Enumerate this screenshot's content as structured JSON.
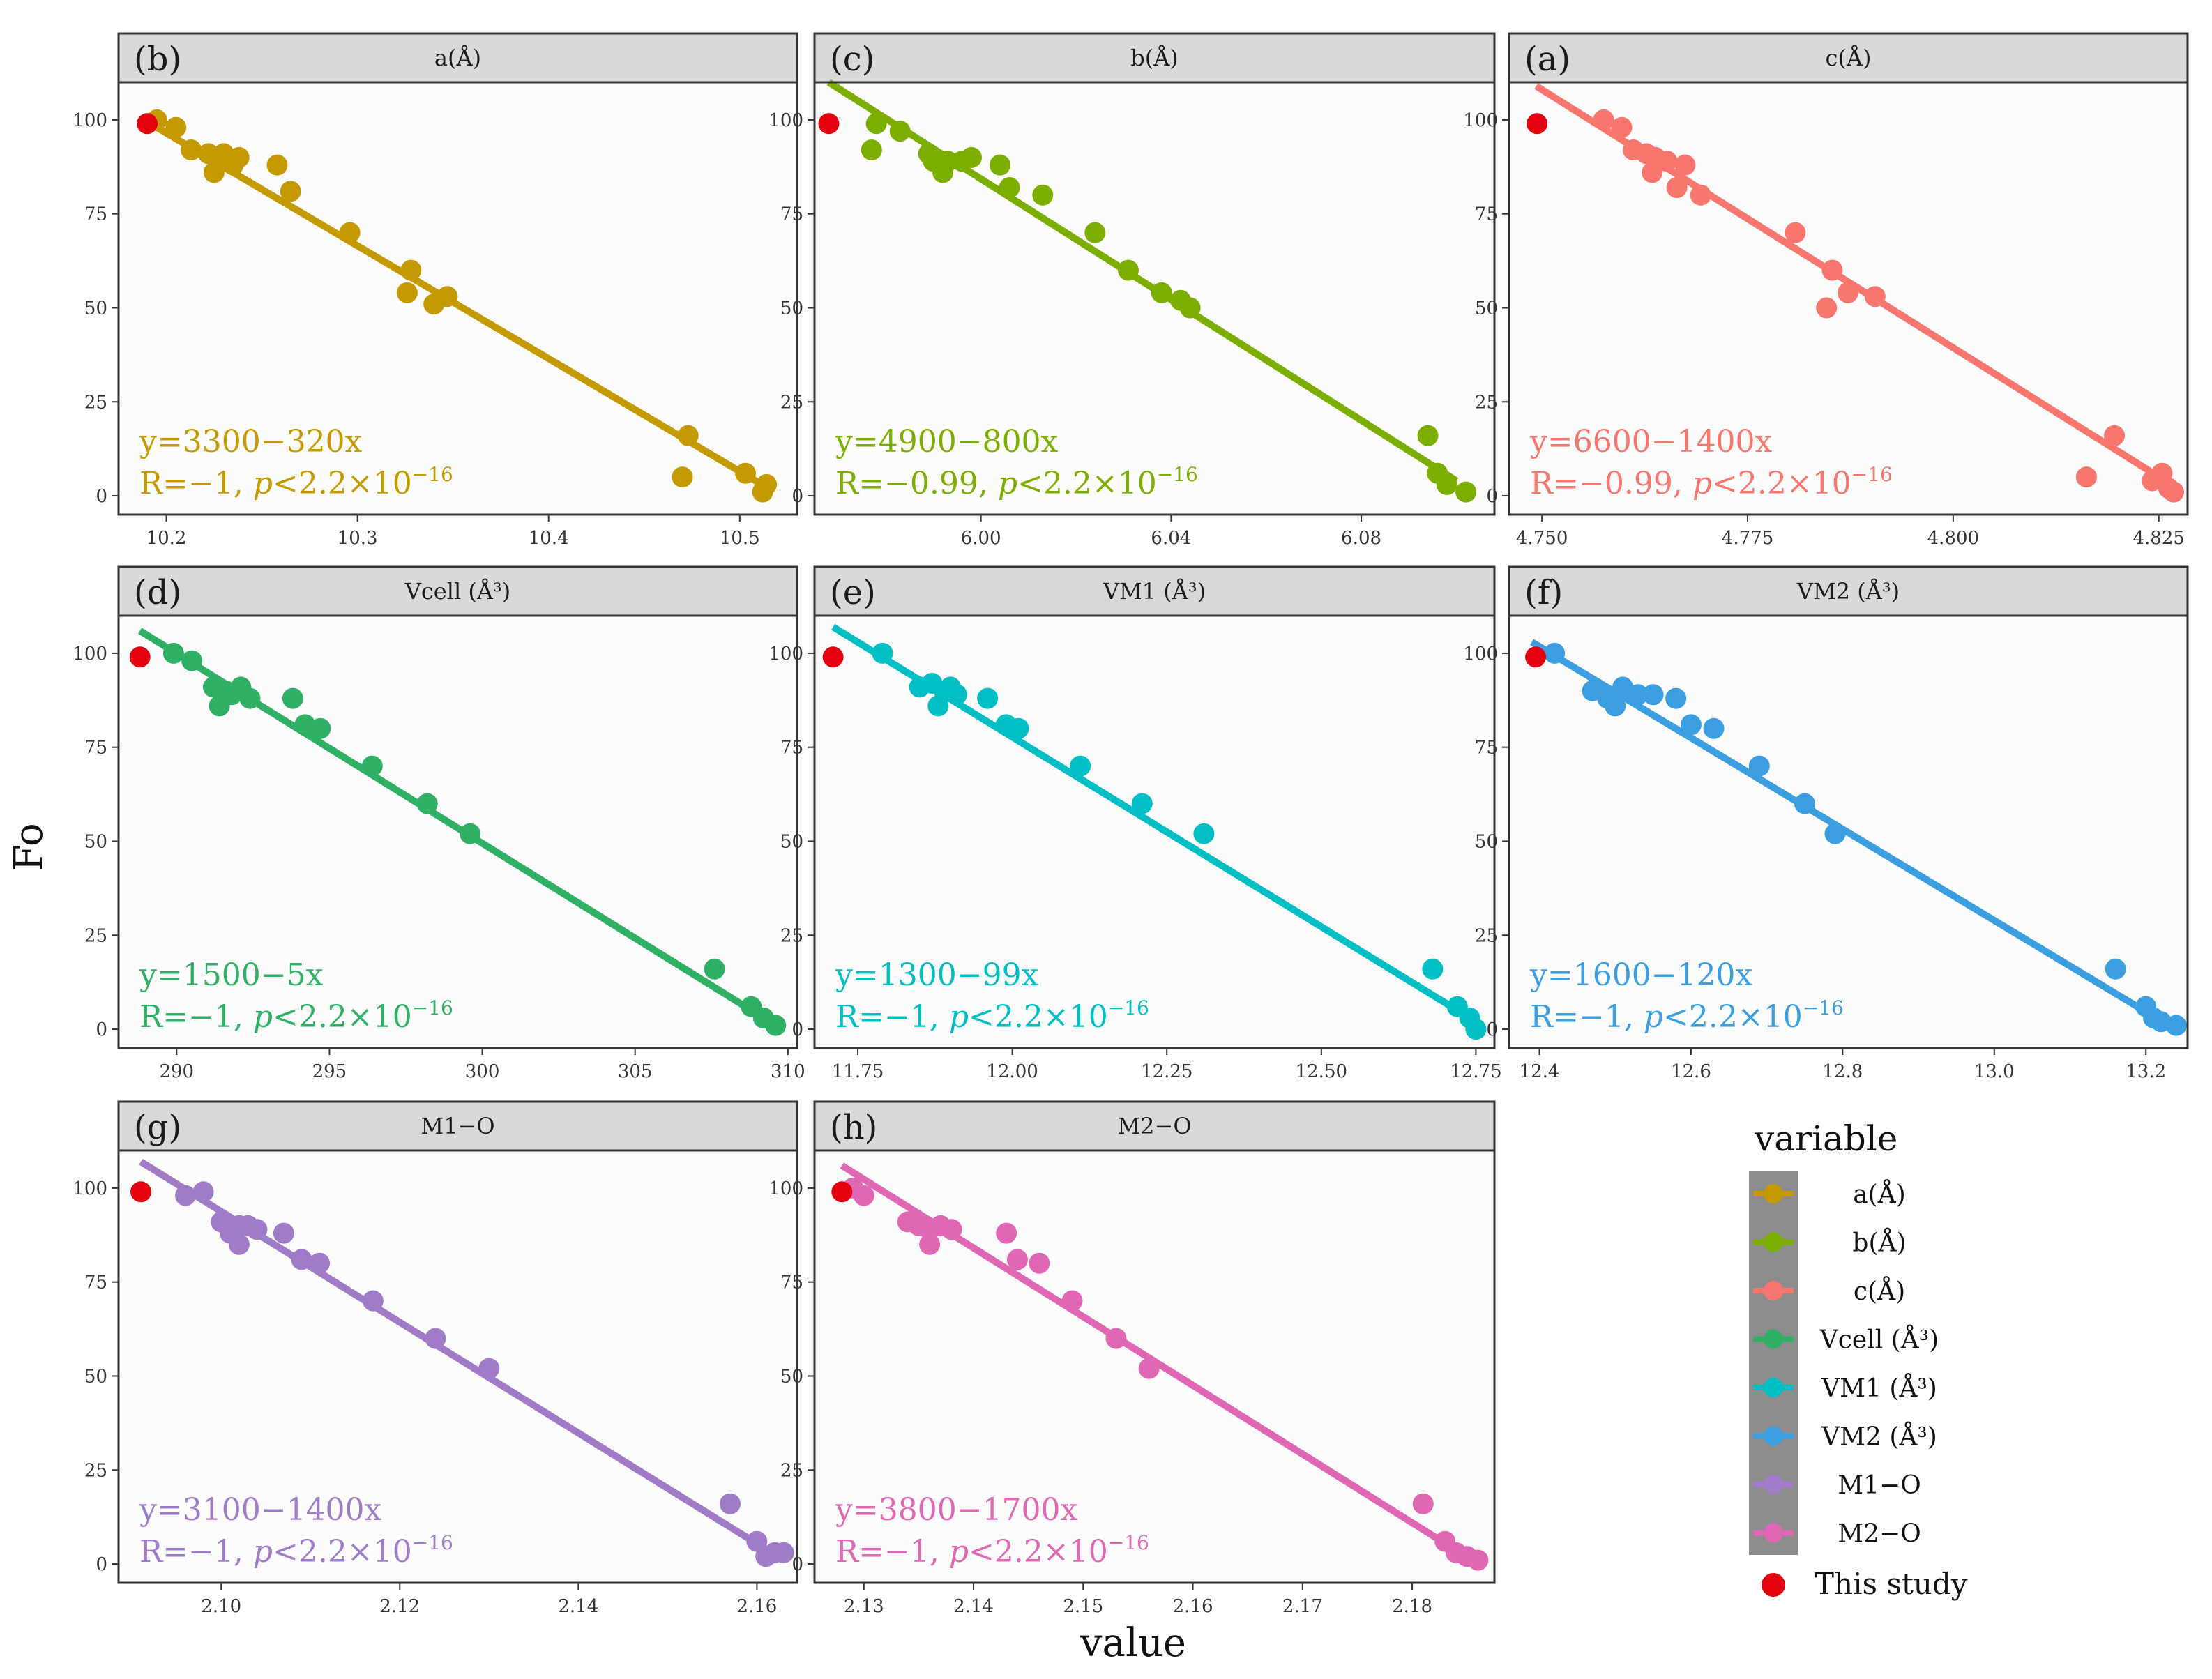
{
  "figure": {
    "y_axis_title": "Fo",
    "x_axis_title": "value"
  },
  "highlight": {
    "label": "This study",
    "color": "#e3000f"
  },
  "legend": {
    "title": "variable",
    "items": [
      {
        "label": "a(Å)",
        "color": "#c49a00"
      },
      {
        "label": "b(Å)",
        "color": "#7cae00"
      },
      {
        "label": "c(Å)",
        "color": "#f8766d"
      },
      {
        "label": "Vcell (Å³)",
        "color": "#2fb064"
      },
      {
        "label": "VM1 (Å³)",
        "color": "#00bfc4"
      },
      {
        "label": "VM2 (Å³)",
        "color": "#3a9ee0"
      },
      {
        "label": "M1−O",
        "color": "#a07bc8"
      },
      {
        "label": "M2−O",
        "color": "#e067b4"
      }
    ],
    "this_study_label": "This study"
  },
  "chart_data": [
    {
      "type": "scatter",
      "tag": "(b)",
      "title": "a(Å)",
      "color": "#c49a00",
      "xlim": [
        10.175,
        10.53
      ],
      "ylim": [
        -5,
        110
      ],
      "xticks": [
        10.2,
        10.3,
        10.4,
        10.5
      ],
      "xtick_labels": [
        "10.2",
        "10.3",
        "10.4",
        "10.5"
      ],
      "yticks": [
        0,
        25,
        50,
        75,
        100
      ],
      "ytick_labels": [
        "0",
        "25",
        "50",
        "75",
        "100"
      ],
      "fit": {
        "x": [
          10.19,
          10.51
        ],
        "y": [
          99.5,
          3.5
        ]
      },
      "equation": "y=3300−320x",
      "stats": {
        "prefix": "R=−1, ",
        "p": "p",
        "rest": "<2.2×10",
        "exp": "−16"
      },
      "this_study": {
        "x": 10.19,
        "y": 99
      },
      "points": [
        [
          10.195,
          100
        ],
        [
          10.205,
          98
        ],
        [
          10.213,
          92
        ],
        [
          10.222,
          91
        ],
        [
          10.225,
          86
        ],
        [
          10.227,
          89
        ],
        [
          10.23,
          91
        ],
        [
          10.235,
          88
        ],
        [
          10.238,
          90
        ],
        [
          10.258,
          88
        ],
        [
          10.265,
          81
        ],
        [
          10.296,
          70
        ],
        [
          10.328,
          60
        ],
        [
          10.326,
          54
        ],
        [
          10.34,
          51
        ],
        [
          10.347,
          53
        ],
        [
          10.47,
          5
        ],
        [
          10.473,
          16
        ],
        [
          10.503,
          6
        ],
        [
          10.512,
          1
        ],
        [
          10.514,
          3
        ]
      ]
    },
    {
      "type": "scatter",
      "tag": "(c)",
      "title": "b(Å)",
      "color": "#7cae00",
      "xlim": [
        5.965,
        6.108
      ],
      "ylim": [
        -5,
        110
      ],
      "xticks": [
        6.0,
        6.04,
        6.08
      ],
      "xtick_labels": [
        "6.00",
        "6.04",
        "6.08"
      ],
      "yticks": [
        0,
        25,
        50,
        75,
        100
      ],
      "ytick_labels": [
        "0",
        "25",
        "50",
        "75",
        "100"
      ],
      "fit": {
        "x": [
          5.968,
          6.1
        ],
        "y": [
          110,
          4
        ]
      },
      "equation": "y=4900−800x",
      "stats": {
        "prefix": "R=−0.99, ",
        "p": "p",
        "rest": "<2.2×10",
        "exp": "−16"
      },
      "this_study": {
        "x": 5.968,
        "y": 99
      },
      "points": [
        [
          5.977,
          92
        ],
        [
          5.978,
          99
        ],
        [
          5.983,
          97
        ],
        [
          5.989,
          91
        ],
        [
          5.99,
          89
        ],
        [
          5.992,
          86
        ],
        [
          5.993,
          89
        ],
        [
          5.996,
          89
        ],
        [
          5.998,
          90
        ],
        [
          6.004,
          88
        ],
        [
          6.006,
          82
        ],
        [
          6.013,
          80
        ],
        [
          6.024,
          70
        ],
        [
          6.031,
          60
        ],
        [
          6.038,
          54
        ],
        [
          6.042,
          52
        ],
        [
          6.044,
          50
        ],
        [
          6.094,
          16
        ],
        [
          6.096,
          6
        ],
        [
          6.098,
          3
        ],
        [
          6.102,
          1
        ]
      ]
    },
    {
      "type": "scatter",
      "tag": "(a)",
      "title": "c(Å)",
      "color": "#f8766d",
      "xlim": [
        4.746,
        4.8285
      ],
      "ylim": [
        -5,
        110
      ],
      "xticks": [
        4.75,
        4.775,
        4.8,
        4.825
      ],
      "xtick_labels": [
        "4.750",
        "4.775",
        "4.800",
        "4.825"
      ],
      "yticks": [
        0,
        25,
        50,
        75,
        100
      ],
      "ytick_labels": [
        "0",
        "25",
        "50",
        "75",
        "100"
      ],
      "fit": {
        "x": [
          4.7493,
          4.8265
        ],
        "y": [
          109,
          3
        ]
      },
      "equation": "y=6600−1400x",
      "stats": {
        "prefix": "R=−0.99, ",
        "p": "p",
        "rest": "<2.2×10",
        "exp": "−16"
      },
      "this_study": {
        "x": 4.7494,
        "y": 99
      },
      "points": [
        [
          4.7575,
          100
        ],
        [
          4.7597,
          98
        ],
        [
          4.7611,
          92
        ],
        [
          4.7627,
          91
        ],
        [
          4.7634,
          86
        ],
        [
          4.7638,
          90
        ],
        [
          4.7652,
          89
        ],
        [
          4.7674,
          88
        ],
        [
          4.7664,
          82
        ],
        [
          4.7693,
          80
        ],
        [
          4.7808,
          70
        ],
        [
          4.7853,
          60
        ],
        [
          4.7872,
          54
        ],
        [
          4.7846,
          50
        ],
        [
          4.7905,
          53
        ],
        [
          4.8162,
          5
        ],
        [
          4.8196,
          16
        ],
        [
          4.8242,
          4
        ],
        [
          4.8254,
          6
        ],
        [
          4.8262,
          2
        ],
        [
          4.8268,
          1
        ]
      ]
    },
    {
      "type": "scatter",
      "tag": "(d)",
      "title": "Vcell (Å³)",
      "color": "#2fb064",
      "xlim": [
        288.1,
        310.3
      ],
      "ylim": [
        -5,
        110
      ],
      "xticks": [
        290,
        295,
        300,
        305,
        310
      ],
      "xtick_labels": [
        "290",
        "295",
        "300",
        "305",
        "310"
      ],
      "yticks": [
        0,
        25,
        50,
        75,
        100
      ],
      "ytick_labels": [
        "0",
        "25",
        "50",
        "75",
        "100"
      ],
      "fit": {
        "x": [
          288.8,
          309.8
        ],
        "y": [
          106,
          0
        ]
      },
      "equation": "y=1500−5x",
      "stats": {
        "prefix": "R=−1, ",
        "p": "p",
        "rest": "<2.2×10",
        "exp": "−16"
      },
      "this_study": {
        "x": 288.8,
        "y": 99
      },
      "points": [
        [
          289.9,
          100
        ],
        [
          290.5,
          98
        ],
        [
          291.2,
          91
        ],
        [
          291.4,
          86
        ],
        [
          291.6,
          90
        ],
        [
          291.8,
          89
        ],
        [
          292.1,
          91
        ],
        [
          292.4,
          88
        ],
        [
          293.8,
          88
        ],
        [
          294.2,
          81
        ],
        [
          294.7,
          80
        ],
        [
          296.4,
          70
        ],
        [
          298.2,
          60
        ],
        [
          299.6,
          52
        ],
        [
          307.6,
          16
        ],
        [
          308.8,
          6
        ],
        [
          309.2,
          3
        ],
        [
          309.6,
          1
        ]
      ]
    },
    {
      "type": "scatter",
      "tag": "(e)",
      "title": "VM1 (Å³)",
      "color": "#00bfc4",
      "xlim": [
        11.68,
        12.78
      ],
      "ylim": [
        -5,
        110
      ],
      "xticks": [
        11.75,
        12.0,
        12.25,
        12.5,
        12.75
      ],
      "xtick_labels": [
        "11.75",
        "12.00",
        "12.25",
        "12.50",
        "12.75"
      ],
      "yticks": [
        0,
        25,
        50,
        75,
        100
      ],
      "ytick_labels": [
        "0",
        "25",
        "50",
        "75",
        "100"
      ],
      "fit": {
        "x": [
          11.71,
          12.75
        ],
        "y": [
          107,
          2
        ]
      },
      "equation": "y=1300−99x",
      "stats": {
        "prefix": "R=−1, ",
        "p": "p",
        "rest": "<2.2×10",
        "exp": "−16"
      },
      "this_study": {
        "x": 11.71,
        "y": 99
      },
      "points": [
        [
          11.79,
          100
        ],
        [
          11.85,
          91
        ],
        [
          11.87,
          92
        ],
        [
          11.88,
          86
        ],
        [
          11.89,
          90
        ],
        [
          11.9,
          91
        ],
        [
          11.91,
          89
        ],
        [
          11.96,
          88
        ],
        [
          11.99,
          81
        ],
        [
          12.01,
          80
        ],
        [
          12.11,
          70
        ],
        [
          12.21,
          60
        ],
        [
          12.31,
          52
        ],
        [
          12.68,
          16
        ],
        [
          12.72,
          6
        ],
        [
          12.74,
          3
        ],
        [
          12.75,
          0
        ]
      ]
    },
    {
      "type": "scatter",
      "tag": "(f)",
      "title": "VM2 (Å³)",
      "color": "#3a9ee0",
      "xlim": [
        12.36,
        13.255
      ],
      "ylim": [
        -5,
        110
      ],
      "xticks": [
        12.4,
        12.6,
        12.8,
        13.0,
        13.2
      ],
      "xtick_labels": [
        "12.4",
        "12.6",
        "12.8",
        "13.0",
        "13.2"
      ],
      "yticks": [
        0,
        25,
        50,
        75,
        100
      ],
      "ytick_labels": [
        "0",
        "25",
        "50",
        "75",
        "100"
      ],
      "fit": {
        "x": [
          12.39,
          13.23
        ],
        "y": [
          103,
          1
        ]
      },
      "equation": "y=1600−120x",
      "stats": {
        "prefix": "R=−1, ",
        "p": "p",
        "rest": "<2.2×10",
        "exp": "−16"
      },
      "this_study": {
        "x": 12.395,
        "y": 99
      },
      "points": [
        [
          12.42,
          100
        ],
        [
          12.47,
          90
        ],
        [
          12.49,
          88
        ],
        [
          12.5,
          86
        ],
        [
          12.51,
          91
        ],
        [
          12.53,
          89
        ],
        [
          12.55,
          89
        ],
        [
          12.58,
          88
        ],
        [
          12.6,
          81
        ],
        [
          12.63,
          80
        ],
        [
          12.69,
          70
        ],
        [
          12.75,
          60
        ],
        [
          12.79,
          52
        ],
        [
          13.16,
          16
        ],
        [
          13.2,
          6
        ],
        [
          13.21,
          3
        ],
        [
          13.22,
          2
        ],
        [
          13.24,
          1
        ]
      ]
    },
    {
      "type": "scatter",
      "tag": "(g)",
      "title": "M1−O",
      "color": "#a07bc8",
      "xlim": [
        2.0885,
        2.1645
      ],
      "ylim": [
        -5,
        110
      ],
      "xticks": [
        2.1,
        2.12,
        2.14,
        2.16
      ],
      "xtick_labels": [
        "2.10",
        "2.12",
        "2.14",
        "2.16"
      ],
      "yticks": [
        0,
        25,
        50,
        75,
        100
      ],
      "ytick_labels": [
        "0",
        "25",
        "50",
        "75",
        "100"
      ],
      "fit": {
        "x": [
          2.091,
          2.163
        ],
        "y": [
          107,
          1
        ]
      },
      "equation": "y=3100−1400x",
      "stats": {
        "prefix": "R=−1, ",
        "p": "p",
        "rest": "<2.2×10",
        "exp": "−16"
      },
      "this_study": {
        "x": 2.091,
        "y": 99
      },
      "points": [
        [
          2.096,
          98
        ],
        [
          2.098,
          99
        ],
        [
          2.1,
          91
        ],
        [
          2.101,
          88
        ],
        [
          2.102,
          85
        ],
        [
          2.102,
          90
        ],
        [
          2.103,
          90
        ],
        [
          2.104,
          89
        ],
        [
          2.107,
          88
        ],
        [
          2.109,
          81
        ],
        [
          2.111,
          80
        ],
        [
          2.117,
          70
        ],
        [
          2.124,
          60
        ],
        [
          2.13,
          52
        ],
        [
          2.157,
          16
        ],
        [
          2.16,
          6
        ],
        [
          2.161,
          2
        ],
        [
          2.162,
          3
        ],
        [
          2.163,
          3
        ]
      ]
    },
    {
      "type": "scatter",
      "tag": "(h)",
      "title": "M2−O",
      "color": "#e067b4",
      "xlim": [
        2.1255,
        2.1875
      ],
      "ylim": [
        -5,
        110
      ],
      "xticks": [
        2.13,
        2.14,
        2.15,
        2.16,
        2.17,
        2.18
      ],
      "xtick_labels": [
        "2.13",
        "2.14",
        "2.15",
        "2.16",
        "2.17",
        "2.18"
      ],
      "yticks": [
        0,
        25,
        50,
        75,
        100
      ],
      "ytick_labels": [
        "0",
        "25",
        "50",
        "75",
        "100"
      ],
      "fit": {
        "x": [
          2.128,
          2.186
        ],
        "y": [
          106,
          0
        ]
      },
      "equation": "y=3800−1700x",
      "stats": {
        "prefix": "R=−1, ",
        "p": "p",
        "rest": "<2.2×10",
        "exp": "−16"
      },
      "this_study": {
        "x": 2.128,
        "y": 99
      },
      "points": [
        [
          2.129,
          100
        ],
        [
          2.13,
          98
        ],
        [
          2.134,
          91
        ],
        [
          2.135,
          90
        ],
        [
          2.136,
          89
        ],
        [
          2.136,
          85
        ],
        [
          2.137,
          90
        ],
        [
          2.138,
          89
        ],
        [
          2.143,
          88
        ],
        [
          2.144,
          81
        ],
        [
          2.146,
          80
        ],
        [
          2.149,
          70
        ],
        [
          2.153,
          60
        ],
        [
          2.156,
          52
        ],
        [
          2.181,
          16
        ],
        [
          2.183,
          6
        ],
        [
          2.184,
          3
        ],
        [
          2.185,
          2
        ],
        [
          2.186,
          1
        ]
      ]
    }
  ]
}
